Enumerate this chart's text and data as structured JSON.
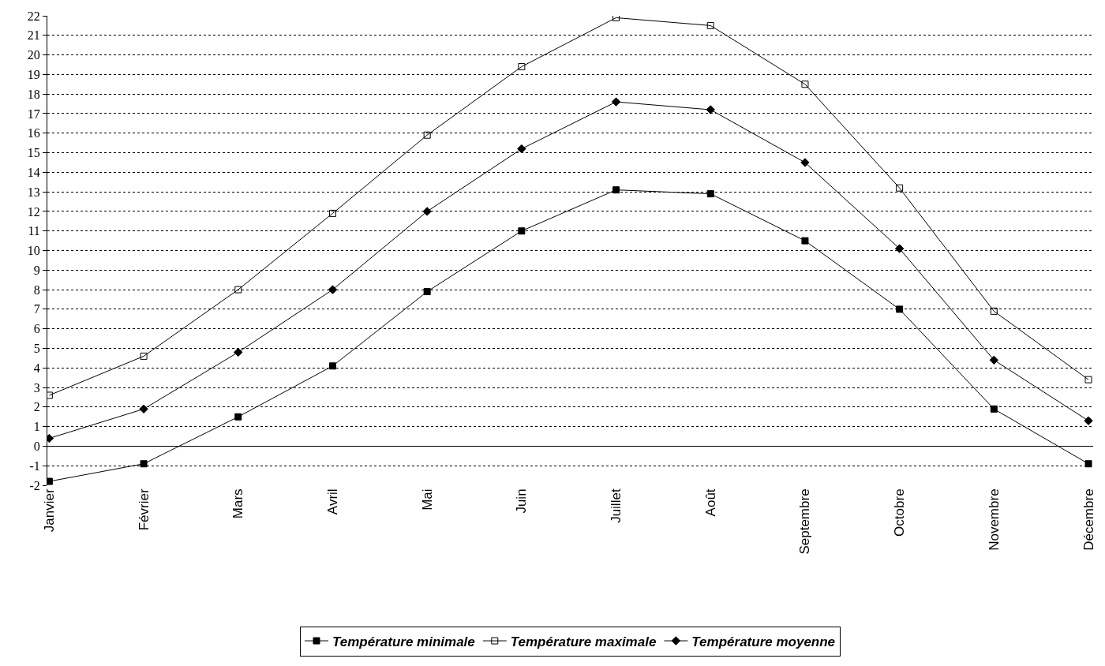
{
  "chart_data": {
    "type": "line",
    "categories": [
      "Janvier",
      "Février",
      "Mars",
      "Avril",
      "Mai",
      "Juin",
      "Juillet",
      "Août",
      "Septembre",
      "Octobre",
      "Novembre",
      "Décembre"
    ],
    "series": [
      {
        "name": "Température minimale",
        "color": "#000000",
        "marker": "square",
        "values": [
          -1.8,
          -0.9,
          1.5,
          4.1,
          7.9,
          11.0,
          13.1,
          12.9,
          10.5,
          7.0,
          1.9,
          -0.9
        ]
      },
      {
        "name": "Température maximale",
        "color": "#000000",
        "marker": "square-open",
        "values": [
          2.6,
          4.6,
          8.0,
          11.9,
          15.9,
          19.4,
          21.9,
          21.5,
          18.5,
          13.2,
          6.9,
          3.4
        ]
      },
      {
        "name": "Température moyenne",
        "color": "#000000",
        "marker": "diamond",
        "values": [
          0.4,
          1.9,
          4.8,
          8.0,
          12.0,
          15.2,
          17.6,
          17.2,
          14.5,
          10.1,
          4.4,
          1.3
        ]
      }
    ],
    "ylim": [
      -2,
      22
    ],
    "yticks": [
      -2,
      -1,
      0,
      1,
      2,
      3,
      4,
      5,
      6,
      7,
      8,
      9,
      10,
      11,
      12,
      13,
      14,
      15,
      16,
      17,
      18,
      19,
      20,
      21,
      22
    ],
    "grid": "y",
    "legend": "bottom",
    "line_style": "solid"
  }
}
